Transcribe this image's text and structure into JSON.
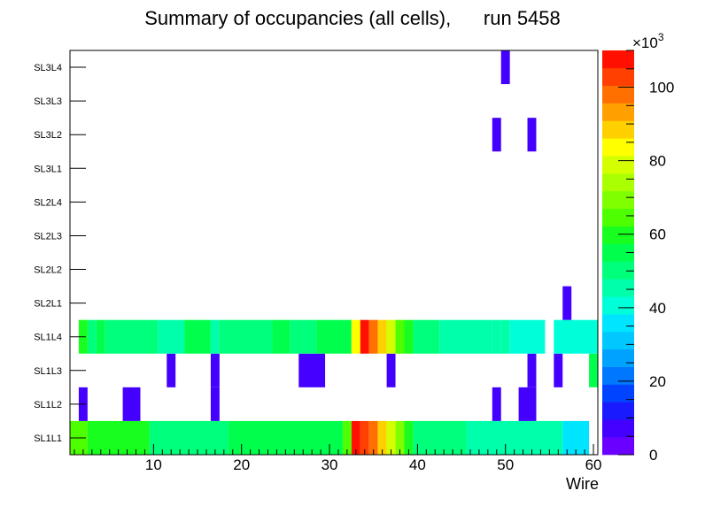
{
  "chart_data": {
    "type": "heatmap",
    "title": "Summary of occupancies (all cells),      run 5458",
    "xlabel": "Wire",
    "ylabel": "",
    "xlim": [
      0.5,
      60.5
    ],
    "x_ticks": [
      10,
      20,
      30,
      40,
      50,
      60
    ],
    "y_categories": [
      "SL1L1",
      "SL1L2",
      "SL1L3",
      "SL1L4",
      "SL2L1",
      "SL2L2",
      "SL2L3",
      "SL2L4",
      "SL3L1",
      "SL3L2",
      "SL3L3",
      "SL3L4"
    ],
    "z_scale_label": "×10",
    "z_scale_exponent": "3",
    "z_range": [
      0,
      110000
    ],
    "z_ticks": [
      0,
      20,
      40,
      60,
      80,
      100
    ],
    "palette": [
      "#6a00ff",
      "#4400ff",
      "#1a1aff",
      "#0044ff",
      "#0077ff",
      "#00a2ff",
      "#00c8ff",
      "#00e5ff",
      "#00ffd8",
      "#00ffaa",
      "#00ff7a",
      "#00ff4d",
      "#18ff1f",
      "#4dff00",
      "#80ff00",
      "#aaff00",
      "#d4ff00",
      "#ffff00",
      "#ffd000",
      "#ffa000",
      "#ff7000",
      "#ff4000",
      "#ff1000"
    ],
    "rows": [
      {
        "layer": "SL1L1",
        "segments": [
          {
            "from": 1,
            "to": 2,
            "value": 63000
          },
          {
            "from": 3,
            "to": 9,
            "value": 58000
          },
          {
            "from": 10,
            "to": 18,
            "value": 50000
          },
          {
            "from": 19,
            "to": 31,
            "value": 57000
          },
          {
            "from": 32,
            "to": 32,
            "value": 63000
          },
          {
            "from": 33,
            "to": 33,
            "value": 108000
          },
          {
            "from": 34,
            "to": 34,
            "value": 104000
          },
          {
            "from": 35,
            "to": 35,
            "value": 98000
          },
          {
            "from": 36,
            "to": 36,
            "value": 90000
          },
          {
            "from": 37,
            "to": 37,
            "value": 80000
          },
          {
            "from": 38,
            "to": 38,
            "value": 70000
          },
          {
            "from": 39,
            "to": 39,
            "value": 60000
          },
          {
            "from": 40,
            "to": 45,
            "value": 52000
          },
          {
            "from": 46,
            "to": 56,
            "value": 45000
          },
          {
            "from": 57,
            "to": 59,
            "value": 38000
          }
        ]
      },
      {
        "layer": "SL1L2",
        "segments": [
          {
            "from": 2,
            "to": 2,
            "value": 5000
          },
          {
            "from": 7,
            "to": 8,
            "value": 5000
          },
          {
            "from": 17,
            "to": 17,
            "value": 5000
          },
          {
            "from": 49,
            "to": 49,
            "value": 5000
          },
          {
            "from": 52,
            "to": 53,
            "value": 5000
          }
        ]
      },
      {
        "layer": "SL1L3",
        "segments": [
          {
            "from": 12,
            "to": 12,
            "value": 5000
          },
          {
            "from": 17,
            "to": 17,
            "value": 5000
          },
          {
            "from": 27,
            "to": 29,
            "value": 5000
          },
          {
            "from": 37,
            "to": 37,
            "value": 5000
          },
          {
            "from": 53,
            "to": 53,
            "value": 5000
          },
          {
            "from": 56,
            "to": 56,
            "value": 5000
          },
          {
            "from": 60,
            "to": 60,
            "value": 55000
          }
        ]
      },
      {
        "layer": "SL1L4",
        "segments": [
          {
            "from": 2,
            "to": 2,
            "value": 60000
          },
          {
            "from": 3,
            "to": 3,
            "value": 52000
          },
          {
            "from": 4,
            "to": 4,
            "value": 55000
          },
          {
            "from": 5,
            "to": 10,
            "value": 50000
          },
          {
            "from": 11,
            "to": 13,
            "value": 45000
          },
          {
            "from": 14,
            "to": 16,
            "value": 53000
          },
          {
            "from": 17,
            "to": 17,
            "value": 45000
          },
          {
            "from": 18,
            "to": 23,
            "value": 50000
          },
          {
            "from": 24,
            "to": 25,
            "value": 57000
          },
          {
            "from": 26,
            "to": 28,
            "value": 52000
          },
          {
            "from": 29,
            "to": 32,
            "value": 57000
          },
          {
            "from": 33,
            "to": 33,
            "value": 85000
          },
          {
            "from": 34,
            "to": 34,
            "value": 108000
          },
          {
            "from": 35,
            "to": 35,
            "value": 100000
          },
          {
            "from": 36,
            "to": 36,
            "value": 90000
          },
          {
            "from": 37,
            "to": 37,
            "value": 78000
          },
          {
            "from": 38,
            "to": 38,
            "value": 66000
          },
          {
            "from": 39,
            "to": 39,
            "value": 60000
          },
          {
            "from": 40,
            "to": 42,
            "value": 52000
          },
          {
            "from": 43,
            "to": 48,
            "value": 46000
          },
          {
            "from": 49,
            "to": 49,
            "value": 44000
          },
          {
            "from": 50,
            "to": 50,
            "value": 46000
          },
          {
            "from": 51,
            "to": 54,
            "value": 40000
          },
          {
            "from": 56,
            "to": 60,
            "value": 40000
          }
        ]
      },
      {
        "layer": "SL2L1",
        "segments": [
          {
            "from": 57,
            "to": 57,
            "value": 5000
          }
        ]
      },
      {
        "layer": "SL2L2",
        "segments": []
      },
      {
        "layer": "SL2L3",
        "segments": []
      },
      {
        "layer": "SL2L4",
        "segments": []
      },
      {
        "layer": "SL3L1",
        "segments": []
      },
      {
        "layer": "SL3L2",
        "segments": [
          {
            "from": 49,
            "to": 49,
            "value": 5000
          },
          {
            "from": 53,
            "to": 53,
            "value": 5000
          }
        ]
      },
      {
        "layer": "SL3L3",
        "segments": []
      },
      {
        "layer": "SL3L4",
        "segments": [
          {
            "from": 50,
            "to": 50,
            "value": 5000
          }
        ]
      }
    ]
  }
}
